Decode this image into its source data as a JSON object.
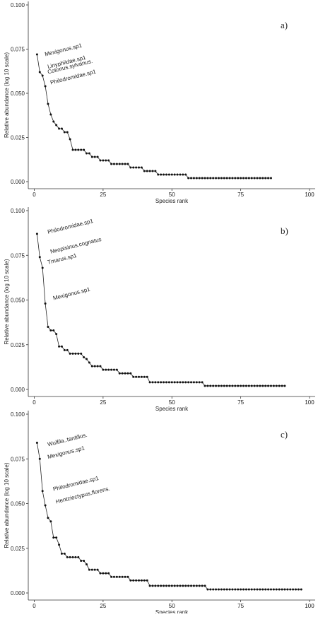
{
  "chart_data": [
    {
      "type": "line",
      "panel_label": "a)",
      "xlabel": "Species rank",
      "ylabel": "Relative abundance (log 10 scale)",
      "xlim": [
        0,
        100
      ],
      "ylim": [
        0,
        0.1
      ],
      "x_ticks": [
        "0",
        "25",
        "50",
        "75",
        "100"
      ],
      "y_ticks": [
        "0.000",
        "0.025",
        "0.050",
        "0.075",
        "0.100"
      ],
      "values": [
        0.072,
        0.062,
        0.06,
        0.054,
        0.044,
        0.038,
        0.034,
        0.032,
        0.03,
        0.03,
        0.028,
        0.028,
        0.024,
        0.018,
        0.018,
        0.018,
        0.018,
        0.018,
        0.016,
        0.016,
        0.014,
        0.014,
        0.014,
        0.012,
        0.012,
        0.012,
        0.012,
        0.01,
        0.01,
        0.01,
        0.01,
        0.01,
        0.01,
        0.01,
        0.008,
        0.008,
        0.008,
        0.008,
        0.008,
        0.006,
        0.006,
        0.006,
        0.006,
        0.006,
        0.004,
        0.004,
        0.004,
        0.004,
        0.004,
        0.004,
        0.004,
        0.004,
        0.004,
        0.004,
        0.004,
        0.002,
        0.002,
        0.002,
        0.002,
        0.002,
        0.002,
        0.002,
        0.002,
        0.002,
        0.002,
        0.002,
        0.002,
        0.002,
        0.002,
        0.002,
        0.002,
        0.002,
        0.002,
        0.002,
        0.002,
        0.002,
        0.002,
        0.002,
        0.002,
        0.002,
        0.002,
        0.002,
        0.002,
        0.002,
        0.002,
        0.002
      ],
      "annotations": [
        {
          "text": "Mexigonus.sp1",
          "x": 4,
          "y": 0.071
        },
        {
          "text": "Linyphiidae.sp1",
          "x": 5,
          "y": 0.064
        },
        {
          "text": "Cotonus.sylvanus.",
          "x": 5,
          "y": 0.061
        },
        {
          "text": "Philodromidae.sp1",
          "x": 6,
          "y": 0.055
        }
      ]
    },
    {
      "type": "line",
      "panel_label": "b)",
      "xlabel": "Species rank",
      "ylabel": "Relative abundance (log 10 scale)",
      "xlim": [
        0,
        100
      ],
      "ylim": [
        0,
        0.1
      ],
      "x_ticks": [
        "0",
        "25",
        "50",
        "75",
        "100"
      ],
      "y_ticks": [
        "0.000",
        "0.025",
        "0.050",
        "0.075",
        "0.100"
      ],
      "values": [
        0.087,
        0.074,
        0.068,
        0.048,
        0.035,
        0.033,
        0.033,
        0.031,
        0.024,
        0.024,
        0.022,
        0.022,
        0.02,
        0.02,
        0.02,
        0.02,
        0.02,
        0.018,
        0.017,
        0.015,
        0.013,
        0.013,
        0.013,
        0.013,
        0.011,
        0.011,
        0.011,
        0.011,
        0.011,
        0.011,
        0.009,
        0.009,
        0.009,
        0.009,
        0.009,
        0.007,
        0.007,
        0.007,
        0.007,
        0.007,
        0.007,
        0.004,
        0.004,
        0.004,
        0.004,
        0.004,
        0.004,
        0.004,
        0.004,
        0.004,
        0.004,
        0.004,
        0.004,
        0.004,
        0.004,
        0.004,
        0.004,
        0.004,
        0.004,
        0.004,
        0.004,
        0.002,
        0.002,
        0.002,
        0.002,
        0.002,
        0.002,
        0.002,
        0.002,
        0.002,
        0.002,
        0.002,
        0.002,
        0.002,
        0.002,
        0.002,
        0.002,
        0.002,
        0.002,
        0.002,
        0.002,
        0.002,
        0.002,
        0.002,
        0.002,
        0.002,
        0.002,
        0.002,
        0.002,
        0.002,
        0.002
      ],
      "annotations": [
        {
          "text": "Philodromidae.sp1",
          "x": 5,
          "y": 0.087
        },
        {
          "text": "Neopisinus.cognatus",
          "x": 6,
          "y": 0.076
        },
        {
          "text": "Tmarus.sp1",
          "x": 5,
          "y": 0.07
        },
        {
          "text": "Mexigonus.sp1",
          "x": 7,
          "y": 0.05
        }
      ]
    },
    {
      "type": "line",
      "panel_label": "c)",
      "xlabel": "Species rank",
      "ylabel": "Relative abundance (log 10 scale)",
      "xlim": [
        0,
        100
      ],
      "ylim": [
        0,
        0.1
      ],
      "x_ticks": [
        "0",
        "25",
        "50",
        "75",
        "100"
      ],
      "y_ticks": [
        "0.000",
        "0.025",
        "0.050",
        "0.075",
        "0.100"
      ],
      "values": [
        0.084,
        0.075,
        0.057,
        0.049,
        0.042,
        0.04,
        0.031,
        0.031,
        0.027,
        0.022,
        0.022,
        0.02,
        0.02,
        0.02,
        0.02,
        0.02,
        0.018,
        0.018,
        0.016,
        0.013,
        0.013,
        0.013,
        0.013,
        0.011,
        0.011,
        0.011,
        0.011,
        0.009,
        0.009,
        0.009,
        0.009,
        0.009,
        0.009,
        0.009,
        0.007,
        0.007,
        0.007,
        0.007,
        0.007,
        0.007,
        0.007,
        0.004,
        0.004,
        0.004,
        0.004,
        0.004,
        0.004,
        0.004,
        0.004,
        0.004,
        0.004,
        0.004,
        0.004,
        0.004,
        0.004,
        0.004,
        0.004,
        0.004,
        0.004,
        0.004,
        0.004,
        0.004,
        0.002,
        0.002,
        0.002,
        0.002,
        0.002,
        0.002,
        0.002,
        0.002,
        0.002,
        0.002,
        0.002,
        0.002,
        0.002,
        0.002,
        0.002,
        0.002,
        0.002,
        0.002,
        0.002,
        0.002,
        0.002,
        0.002,
        0.002,
        0.002,
        0.002,
        0.002,
        0.002,
        0.002,
        0.002,
        0.002,
        0.002,
        0.002,
        0.002,
        0.002,
        0.002
      ],
      "annotations": [
        {
          "text": "Wulfila..tantillus.",
          "x": 5,
          "y": 0.082
        },
        {
          "text": "Mexigonus.sp1",
          "x": 5,
          "y": 0.075
        },
        {
          "text": "Philodromidae.sp1",
          "x": 7,
          "y": 0.057
        },
        {
          "text": "Hentziectypus.florens.",
          "x": 8,
          "y": 0.05
        }
      ]
    }
  ]
}
